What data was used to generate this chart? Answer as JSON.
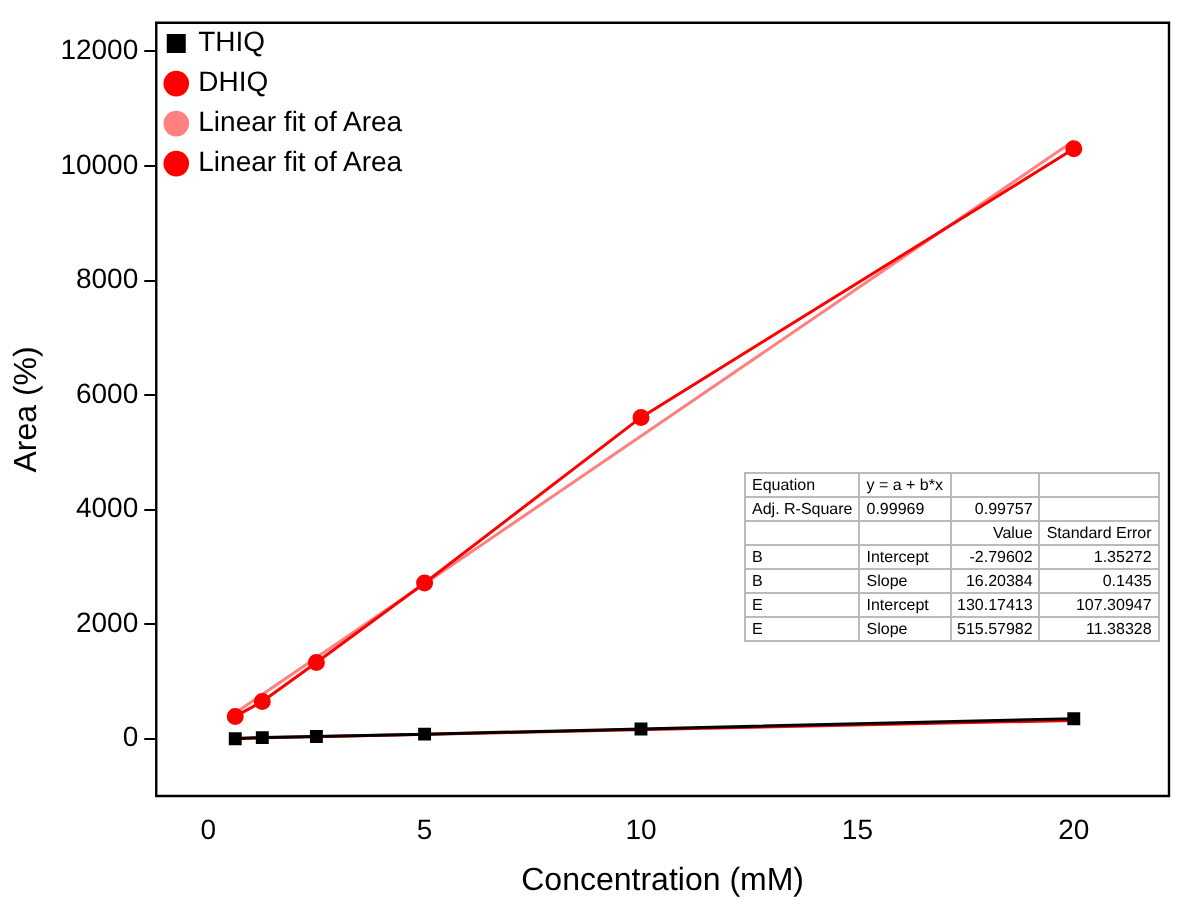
{
  "chart_data": {
    "type": "line",
    "xlabel": "Concentration (mM)",
    "ylabel": "Area (%)",
    "xlim": [
      -1.2,
      22.2
    ],
    "xticks": [
      0,
      5,
      10,
      15,
      20
    ],
    "ylim": [
      -1000,
      12500
    ],
    "yticks": [
      0,
      2000,
      4000,
      6000,
      8000,
      10000,
      12000
    ],
    "legend": "top left",
    "line_style": "solid",
    "series": [
      {
        "name": "THIQ",
        "color": "#000000",
        "marker": "square",
        "x": [
          0.625,
          1.25,
          2.5,
          5,
          10,
          20
        ],
        "values": [
          0,
          20,
          40,
          80,
          170,
          350
        ]
      },
      {
        "name": "DHIQ",
        "color": "#ff0000",
        "marker": "circle",
        "x": [
          0.625,
          1.25,
          2.5,
          5,
          10,
          20
        ],
        "values": [
          390,
          650,
          1330,
          2720,
          5610,
          10300
        ]
      },
      {
        "name": "Linear fit of Area",
        "color": "#ff8080",
        "marker": "none",
        "x": [
          0.625,
          20
        ],
        "values": [
          450,
          10440
        ]
      },
      {
        "name": "Linear fit of Area",
        "color": "#ff0000",
        "marker": "none",
        "x": [
          0.625,
          20
        ],
        "values": [
          7,
          320
        ]
      }
    ],
    "annotations": [
      "Equation",
      "y = a + b*x",
      null,
      null,
      "Adj. R-Square",
      "0.99969",
      "0.99757",
      null,
      null,
      null,
      "Value",
      "Standard Error",
      "B",
      "Intercept",
      "-2.79602",
      "1.35272",
      "B",
      "Slope",
      "16.20384",
      "0.1435",
      "E",
      "Intercept",
      "130.17413",
      "107.30947",
      "E",
      "Slope",
      "515.57982",
      "11.38328"
    ]
  }
}
